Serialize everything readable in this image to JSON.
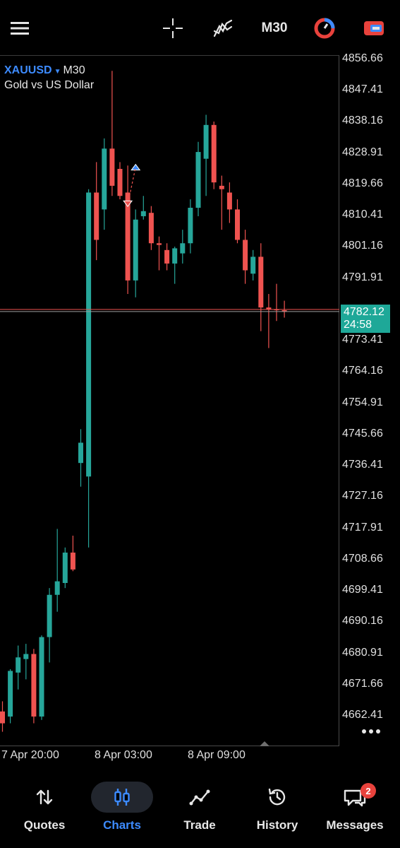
{
  "toolbar": {
    "timeframe_label": "M30"
  },
  "symbol": {
    "name": "XAUUSD",
    "timeframe": "M30",
    "description": "Gold vs US Dollar"
  },
  "price_axis": {
    "labels": [
      "4856.66",
      "4847.41",
      "4838.16",
      "4828.91",
      "4819.66",
      "4810.41",
      "4801.16",
      "4791.91",
      "4773.41",
      "4764.16",
      "4754.91",
      "4745.66",
      "4736.41",
      "4727.16",
      "4717.91",
      "4708.66",
      "4699.41",
      "4690.16",
      "4680.91",
      "4671.66",
      "4662.41"
    ]
  },
  "current_price": {
    "value": "4782.12",
    "countdown": "24:58"
  },
  "time_axis": {
    "labels": [
      "7 Apr 20:00",
      "8 Apr 03:00",
      "8 Apr 09:00"
    ]
  },
  "colors": {
    "bull": "#26a69a",
    "bear": "#ef5350",
    "accent": "#3d8bff",
    "current_price_bg": "#1ea898"
  },
  "chart_data": {
    "type": "candlestick",
    "symbol": "XAUUSD",
    "timeframe": "M30",
    "ylim": [
      4658,
      4862
    ],
    "candles": [
      {
        "o": 4663.5,
        "h": 4666.5,
        "l": 4657.5,
        "c": 4660.0
      },
      {
        "o": 4662.0,
        "h": 4676.0,
        "l": 4660.0,
        "c": 4675.5
      },
      {
        "o": 4675.0,
        "h": 4683.0,
        "l": 4670.0,
        "c": 4679.5
      },
      {
        "o": 4679.0,
        "h": 4683.5,
        "l": 4673.0,
        "c": 4680.5
      },
      {
        "o": 4680.5,
        "h": 4682.0,
        "l": 4660.0,
        "c": 4662.0
      },
      {
        "o": 4662.0,
        "h": 4686.0,
        "l": 4661.0,
        "c": 4685.5
      },
      {
        "o": 4685.5,
        "h": 4700.0,
        "l": 4678.0,
        "c": 4698.0
      },
      {
        "o": 4698.0,
        "h": 4717.5,
        "l": 4693.0,
        "c": 4702.0
      },
      {
        "o": 4701.5,
        "h": 4712.0,
        "l": 4700.0,
        "c": 4710.5
      },
      {
        "o": 4710.5,
        "h": 4715.5,
        "l": 4705.0,
        "c": 4705.5
      },
      {
        "o": 4737.0,
        "h": 4747.0,
        "l": 4730.0,
        "c": 4743.0
      },
      {
        "o": 4733.0,
        "h": 4818.0,
        "l": 4712.0,
        "c": 4817.0
      },
      {
        "o": 4817.0,
        "h": 4826.0,
        "l": 4797.0,
        "c": 4803.0
      },
      {
        "o": 4812.0,
        "h": 4833.0,
        "l": 4806.0,
        "c": 4830.0
      },
      {
        "o": 4830.0,
        "h": 4853.0,
        "l": 4816.0,
        "c": 4819.0
      },
      {
        "o": 4824.0,
        "h": 4826.0,
        "l": 4815.0,
        "c": 4816.0
      },
      {
        "o": 4817.0,
        "h": 4825.0,
        "l": 4787.0,
        "c": 4791.0
      },
      {
        "o": 4791.0,
        "h": 4812.0,
        "l": 4786.0,
        "c": 4809.0
      },
      {
        "o": 4810.0,
        "h": 4816.0,
        "l": 4809.0,
        "c": 4811.5
      },
      {
        "o": 4811.0,
        "h": 4813.0,
        "l": 4800.0,
        "c": 4802.0
      },
      {
        "o": 4802.0,
        "h": 4804.0,
        "l": 4794.0,
        "c": 4801.5
      },
      {
        "o": 4800.0,
        "h": 4802.0,
        "l": 4794.0,
        "c": 4796.0
      },
      {
        "o": 4796.0,
        "h": 4801.0,
        "l": 4790.0,
        "c": 4800.5
      },
      {
        "o": 4799.0,
        "h": 4806.0,
        "l": 4796.0,
        "c": 4802.0
      },
      {
        "o": 4802.0,
        "h": 4815.0,
        "l": 4799.0,
        "c": 4812.5
      },
      {
        "o": 4812.5,
        "h": 4832.0,
        "l": 4810.0,
        "c": 4829.0
      },
      {
        "o": 4827.0,
        "h": 4840.0,
        "l": 4816.0,
        "c": 4837.0
      },
      {
        "o": 4837.0,
        "h": 4838.0,
        "l": 4818.0,
        "c": 4820.0
      },
      {
        "o": 4819.0,
        "h": 4822.0,
        "l": 4806.0,
        "c": 4818.0
      },
      {
        "o": 4817.0,
        "h": 4820.0,
        "l": 4808.0,
        "c": 4812.0
      },
      {
        "o": 4812.0,
        "h": 4815.0,
        "l": 4802.0,
        "c": 4803.0
      },
      {
        "o": 4803.0,
        "h": 4806.0,
        "l": 4790.0,
        "c": 4794.0
      },
      {
        "o": 4793.0,
        "h": 4800.0,
        "l": 4791.0,
        "c": 4798.0
      },
      {
        "o": 4798.0,
        "h": 4802.0,
        "l": 4776.0,
        "c": 4783.0
      },
      {
        "o": 4783.0,
        "h": 4787.0,
        "l": 4771.0,
        "c": 4782.5
      },
      {
        "o": 4782.5,
        "h": 4790.0,
        "l": 4779.0,
        "c": 4782.2
      },
      {
        "o": 4782.2,
        "h": 4785.0,
        "l": 4780.0,
        "c": 4782.1
      }
    ],
    "current_price": 4782.12,
    "trade_markers": [
      {
        "type": "sell",
        "candle": 16,
        "price": 4813.5
      },
      {
        "type": "buy",
        "candle": 17,
        "price": 4824.5
      }
    ]
  },
  "nav": {
    "items": [
      {
        "label": "Quotes",
        "icon": "quotes-icon"
      },
      {
        "label": "Charts",
        "icon": "charts-icon"
      },
      {
        "label": "Trade",
        "icon": "trade-icon"
      },
      {
        "label": "History",
        "icon": "history-icon"
      },
      {
        "label": "Messages",
        "icon": "messages-icon"
      }
    ],
    "messages_badge": "2"
  }
}
